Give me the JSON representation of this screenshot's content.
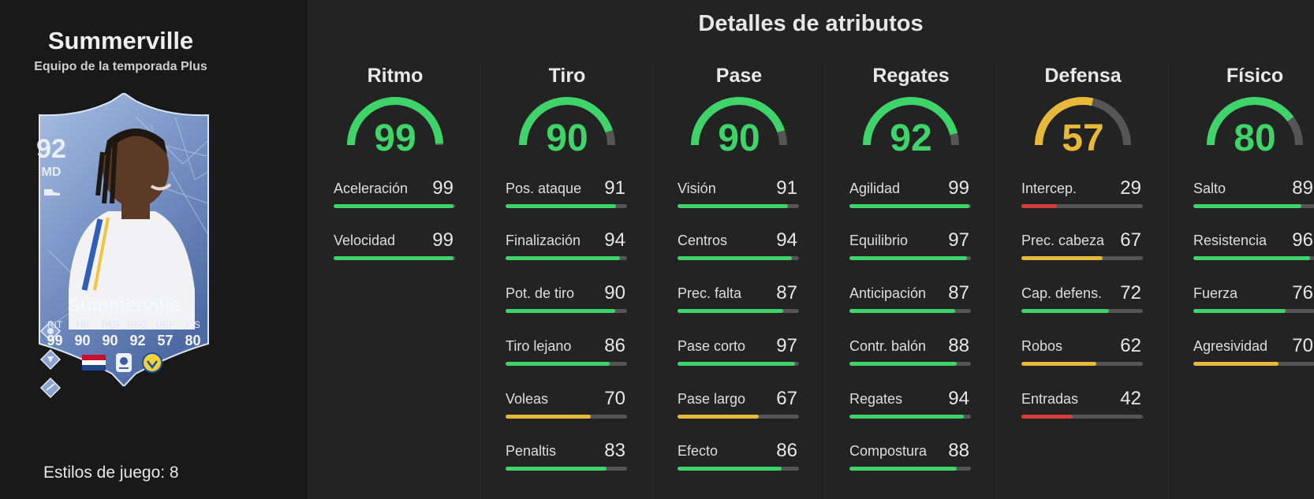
{
  "colors": {
    "green": "#3fd46a",
    "yellow": "#e8b83a",
    "red": "#d63d3d",
    "track": "#555555",
    "card_blue": "#7f9bcc"
  },
  "player": {
    "name": "Summerville",
    "subtitle": "Equipo de la temporada Plus",
    "rating": "92",
    "position": "MD",
    "card_name": "Summerville",
    "stat_labels": [
      "RIT",
      "TIR",
      "PAS",
      "REG",
      "DEF",
      "FÍS"
    ],
    "stat_values": [
      "99",
      "90",
      "90",
      "92",
      "57",
      "80"
    ],
    "playstyles": "Estilos de juego: 8",
    "icons": [
      "boot-icon",
      "playstyle-1-icon",
      "playstyle-2-icon",
      "playstyle-3-icon",
      "netherlands-flag-icon",
      "league-badge-icon",
      "leeds-badge-icon"
    ]
  },
  "title": "Detalles de atributos",
  "categories": [
    {
      "name": "Ritmo",
      "value": "99",
      "level": 0.99,
      "color": "#3fd46a",
      "attrs": [
        {
          "label": "Aceleración",
          "value": "99",
          "level": 0.99,
          "color": "#3fd46a"
        },
        {
          "label": "Velocidad",
          "value": "99",
          "level": 0.99,
          "color": "#3fd46a"
        }
      ]
    },
    {
      "name": "Tiro",
      "value": "90",
      "level": 0.9,
      "color": "#3fd46a",
      "attrs": [
        {
          "label": "Pos. ataque",
          "value": "91",
          "level": 0.91,
          "color": "#3fd46a"
        },
        {
          "label": "Finalización",
          "value": "94",
          "level": 0.94,
          "color": "#3fd46a"
        },
        {
          "label": "Pot. de tiro",
          "value": "90",
          "level": 0.9,
          "color": "#3fd46a"
        },
        {
          "label": "Tiro lejano",
          "value": "86",
          "level": 0.86,
          "color": "#3fd46a"
        },
        {
          "label": "Voleas",
          "value": "70",
          "level": 0.7,
          "color": "#e8b83a"
        },
        {
          "label": "Penaltis",
          "value": "83",
          "level": 0.83,
          "color": "#3fd46a"
        }
      ]
    },
    {
      "name": "Pase",
      "value": "90",
      "level": 0.9,
      "color": "#3fd46a",
      "attrs": [
        {
          "label": "Visión",
          "value": "91",
          "level": 0.91,
          "color": "#3fd46a"
        },
        {
          "label": "Centros",
          "value": "94",
          "level": 0.94,
          "color": "#3fd46a"
        },
        {
          "label": "Prec. falta",
          "value": "87",
          "level": 0.87,
          "color": "#3fd46a"
        },
        {
          "label": "Pase corto",
          "value": "97",
          "level": 0.97,
          "color": "#3fd46a"
        },
        {
          "label": "Pase largo",
          "value": "67",
          "level": 0.67,
          "color": "#e8b83a"
        },
        {
          "label": "Efecto",
          "value": "86",
          "level": 0.86,
          "color": "#3fd46a"
        }
      ]
    },
    {
      "name": "Regates",
      "value": "92",
      "level": 0.92,
      "color": "#3fd46a",
      "attrs": [
        {
          "label": "Agilidad",
          "value": "99",
          "level": 0.99,
          "color": "#3fd46a"
        },
        {
          "label": "Equilibrio",
          "value": "97",
          "level": 0.97,
          "color": "#3fd46a"
        },
        {
          "label": "Anticipación",
          "value": "87",
          "level": 0.87,
          "color": "#3fd46a"
        },
        {
          "label": "Contr. balón",
          "value": "88",
          "level": 0.88,
          "color": "#3fd46a"
        },
        {
          "label": "Regates",
          "value": "94",
          "level": 0.94,
          "color": "#3fd46a"
        },
        {
          "label": "Compostura",
          "value": "88",
          "level": 0.88,
          "color": "#3fd46a"
        }
      ]
    },
    {
      "name": "Defensa",
      "value": "57",
      "level": 0.57,
      "color": "#e8b83a",
      "attrs": [
        {
          "label": "Intercep.",
          "value": "29",
          "level": 0.29,
          "color": "#d63d3d"
        },
        {
          "label": "Prec. cabeza",
          "value": "67",
          "level": 0.67,
          "color": "#e8b83a"
        },
        {
          "label": "Cap. defens.",
          "value": "72",
          "level": 0.72,
          "color": "#3fd46a"
        },
        {
          "label": "Robos",
          "value": "62",
          "level": 0.62,
          "color": "#e8b83a"
        },
        {
          "label": "Entradas",
          "value": "42",
          "level": 0.42,
          "color": "#d63d3d"
        }
      ]
    },
    {
      "name": "Físico",
      "value": "80",
      "level": 0.8,
      "color": "#3fd46a",
      "attrs": [
        {
          "label": "Salto",
          "value": "89",
          "level": 0.89,
          "color": "#3fd46a"
        },
        {
          "label": "Resistencia",
          "value": "96",
          "level": 0.96,
          "color": "#3fd46a"
        },
        {
          "label": "Fuerza",
          "value": "76",
          "level": 0.76,
          "color": "#3fd46a"
        },
        {
          "label": "Agresividad",
          "value": "70",
          "level": 0.7,
          "color": "#e8b83a"
        }
      ]
    }
  ]
}
